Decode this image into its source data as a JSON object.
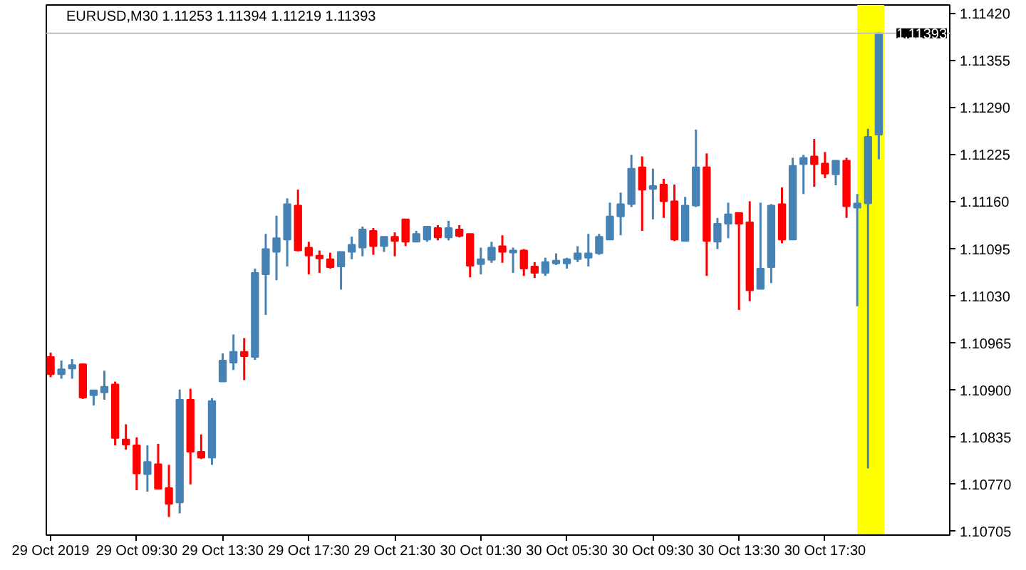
{
  "chart_data": {
    "type": "candlestick",
    "title": "EURUSD,M30 1.11253 1.11394 1.11219 1.11393",
    "x": [
      "2019-10-29T05:30",
      "2019-10-29T06:00",
      "2019-10-29T06:30",
      "2019-10-29T07:00",
      "2019-10-29T07:30",
      "2019-10-29T08:00",
      "2019-10-29T08:30",
      "2019-10-29T09:00",
      "2019-10-29T09:30",
      "2019-10-29T10:00",
      "2019-10-29T10:30",
      "2019-10-29T11:00",
      "2019-10-29T11:30",
      "2019-10-29T12:00",
      "2019-10-29T12:30",
      "2019-10-29T13:00",
      "2019-10-29T13:30",
      "2019-10-29T14:00",
      "2019-10-29T14:30",
      "2019-10-29T15:00",
      "2019-10-29T15:30",
      "2019-10-29T16:00",
      "2019-10-29T16:30",
      "2019-10-29T17:00",
      "2019-10-29T17:30",
      "2019-10-29T18:00",
      "2019-10-29T18:30",
      "2019-10-29T19:00",
      "2019-10-29T19:30",
      "2019-10-29T20:00",
      "2019-10-29T20:30",
      "2019-10-29T21:00",
      "2019-10-29T21:30",
      "2019-10-29T22:00",
      "2019-10-29T22:30",
      "2019-10-29T23:00",
      "2019-10-29T23:30",
      "2019-10-30T00:00",
      "2019-10-30T00:30",
      "2019-10-30T01:00",
      "2019-10-30T01:30",
      "2019-10-30T02:00",
      "2019-10-30T02:30",
      "2019-10-30T03:00",
      "2019-10-30T03:30",
      "2019-10-30T04:00",
      "2019-10-30T04:30",
      "2019-10-30T05:00",
      "2019-10-30T05:30",
      "2019-10-30T06:00",
      "2019-10-30T06:30",
      "2019-10-30T07:00",
      "2019-10-30T07:30",
      "2019-10-30T08:00",
      "2019-10-30T08:30",
      "2019-10-30T09:00",
      "2019-10-30T09:30",
      "2019-10-30T10:00",
      "2019-10-30T10:30",
      "2019-10-30T11:00",
      "2019-10-30T11:30",
      "2019-10-30T12:00",
      "2019-10-30T12:30",
      "2019-10-30T13:00",
      "2019-10-30T13:30",
      "2019-10-30T14:00",
      "2019-10-30T14:30",
      "2019-10-30T15:00",
      "2019-10-30T15:30",
      "2019-10-30T16:00",
      "2019-10-30T16:30",
      "2019-10-30T17:00",
      "2019-10-30T17:30",
      "2019-10-30T18:00",
      "2019-10-30T18:30",
      "2019-10-30T19:00",
      "2019-10-30T19:30",
      "2019-10-30T20:00"
    ],
    "ohlc": [
      [
        1.10946,
        1.10952,
        1.10918,
        1.10922
      ],
      [
        1.10922,
        1.10941,
        1.10916,
        1.10929
      ],
      [
        1.1093,
        1.10943,
        1.10916,
        1.10935
      ],
      [
        1.10936,
        1.10937,
        1.10888,
        1.1089
      ],
      [
        1.10893,
        1.109,
        1.10879,
        1.109
      ],
      [
        1.10897,
        1.10927,
        1.10887,
        1.10905
      ],
      [
        1.10908,
        1.10912,
        1.10824,
        1.10834
      ],
      [
        1.10832,
        1.10853,
        1.10818,
        1.10825
      ],
      [
        1.10824,
        1.10835,
        1.10762,
        1.10785
      ],
      [
        1.10784,
        1.10824,
        1.1076,
        1.10801
      ],
      [
        1.10798,
        1.10826,
        1.10764,
        1.10764
      ],
      [
        1.10765,
        1.10797,
        1.10725,
        1.10743
      ],
      [
        1.10745,
        1.10901,
        1.1073,
        1.10887
      ],
      [
        1.10887,
        1.10902,
        1.1077,
        1.10815
      ],
      [
        1.10815,
        1.10839,
        1.10805,
        1.10807
      ],
      [
        1.10807,
        1.10889,
        1.10797,
        1.10885
      ],
      [
        1.10912,
        1.10951,
        1.10912,
        1.10941
      ],
      [
        1.10938,
        1.10977,
        1.10928,
        1.10953
      ],
      [
        1.10953,
        1.10972,
        1.10914,
        1.10947
      ],
      [
        1.10946,
        1.11068,
        1.10942,
        1.11062
      ],
      [
        1.1106,
        1.11116,
        1.11004,
        1.11095
      ],
      [
        1.11091,
        1.11141,
        1.11052,
        1.1111
      ],
      [
        1.11108,
        1.11165,
        1.11071,
        1.11157
      ],
      [
        1.11155,
        1.11177,
        1.11092,
        1.11093
      ],
      [
        1.11097,
        1.11105,
        1.1106,
        1.11086
      ],
      [
        1.11086,
        1.11093,
        1.11062,
        1.11082
      ],
      [
        1.11081,
        1.1109,
        1.11068,
        1.1107
      ],
      [
        1.11071,
        1.11091,
        1.11039,
        1.11091
      ],
      [
        1.11091,
        1.11112,
        1.11081,
        1.11101
      ],
      [
        1.11097,
        1.11126,
        1.11085,
        1.11122
      ],
      [
        1.1112,
        1.11124,
        1.11087,
        1.11099
      ],
      [
        1.11099,
        1.11112,
        1.11091,
        1.11112
      ],
      [
        1.11112,
        1.11118,
        1.11085,
        1.11106
      ],
      [
        1.11136,
        1.11136,
        1.11099,
        1.11105
      ],
      [
        1.11105,
        1.1112,
        1.11105,
        1.11116
      ],
      [
        1.11108,
        1.11126,
        1.11105,
        1.11126
      ],
      [
        1.11124,
        1.11128,
        1.11107,
        1.11111
      ],
      [
        1.11111,
        1.11134,
        1.11107,
        1.11124
      ],
      [
        1.11122,
        1.11128,
        1.11111,
        1.11113
      ],
      [
        1.11116,
        1.11116,
        1.11056,
        1.11072
      ],
      [
        1.11074,
        1.11097,
        1.1106,
        1.11081
      ],
      [
        1.1108,
        1.11105,
        1.11076,
        1.11097
      ],
      [
        1.11099,
        1.11114,
        1.11076,
        1.11091
      ],
      [
        1.1109,
        1.11097,
        1.11062,
        1.11093
      ],
      [
        1.11093,
        1.11095,
        1.11058,
        1.11068
      ],
      [
        1.11071,
        1.11077,
        1.11055,
        1.11062
      ],
      [
        1.11062,
        1.11083,
        1.11058,
        1.11077
      ],
      [
        1.11075,
        1.11089,
        1.11073,
        1.11079
      ],
      [
        1.11075,
        1.11083,
        1.11068,
        1.11081
      ],
      [
        1.11081,
        1.11099,
        1.11077,
        1.11089
      ],
      [
        1.11083,
        1.11116,
        1.11071,
        1.11089
      ],
      [
        1.11089,
        1.11116,
        1.11087,
        1.11112
      ],
      [
        1.11108,
        1.11159,
        1.11108,
        1.1114
      ],
      [
        1.1114,
        1.11173,
        1.11114,
        1.11157
      ],
      [
        1.11157,
        1.11225,
        1.11153,
        1.11206
      ],
      [
        1.11208,
        1.11223,
        1.1112,
        1.11177
      ],
      [
        1.11178,
        1.11206,
        1.11136,
        1.11182
      ],
      [
        1.11184,
        1.11192,
        1.11138,
        1.11161
      ],
      [
        1.11161,
        1.11184,
        1.11106,
        1.11108
      ],
      [
        1.11106,
        1.11167,
        1.11106,
        1.11155
      ],
      [
        1.11155,
        1.1126,
        1.11153,
        1.11208
      ],
      [
        1.11208,
        1.11227,
        1.11058,
        1.11106
      ],
      [
        1.11105,
        1.11138,
        1.11095,
        1.1113
      ],
      [
        1.1113,
        1.11159,
        1.1111,
        1.11143
      ],
      [
        1.11145,
        1.11145,
        1.11011,
        1.1113
      ],
      [
        1.11132,
        1.11161,
        1.11023,
        1.11038
      ],
      [
        1.1104,
        1.11159,
        1.1104,
        1.11068
      ],
      [
        1.1107,
        1.11157,
        1.11048,
        1.11155
      ],
      [
        1.11157,
        1.1118,
        1.11103,
        1.11108
      ],
      [
        1.11108,
        1.11221,
        1.11108,
        1.1121
      ],
      [
        1.11212,
        1.11225,
        1.11171,
        1.11221
      ],
      [
        1.11223,
        1.11247,
        1.11181,
        1.11212
      ],
      [
        1.11213,
        1.11229,
        1.11193,
        1.11199
      ],
      [
        1.11198,
        1.11217,
        1.11183,
        1.11217
      ],
      [
        1.11217,
        1.11221,
        1.11138,
        1.11154
      ],
      [
        1.11152,
        1.11171,
        1.11016,
        1.11158
      ],
      [
        1.11158,
        1.11261,
        1.10792,
        1.1125
      ],
      [
        1.11253,
        1.11394,
        1.11219,
        1.11393
      ]
    ],
    "colors": [
      "#ff0000",
      "#4682b4",
      "#4682b4",
      "#ff0000",
      "#4682b4",
      "#4682b4",
      "#ff0000",
      "#ff0000",
      "#ff0000",
      "#4682b4",
      "#ff0000",
      "#ff0000",
      "#4682b4",
      "#ff0000",
      "#ff0000",
      "#4682b4",
      "#4682b4",
      "#4682b4",
      "#ff0000",
      "#4682b4",
      "#4682b4",
      "#4682b4",
      "#4682b4",
      "#ff0000",
      "#ff0000",
      "#ff0000",
      "#ff0000",
      "#4682b4",
      "#4682b4",
      "#4682b4",
      "#ff0000",
      "#4682b4",
      "#ff0000",
      "#ff0000",
      "#4682b4",
      "#4682b4",
      "#ff0000",
      "#4682b4",
      "#ff0000",
      "#ff0000",
      "#4682b4",
      "#4682b4",
      "#ff0000",
      "#4682b4",
      "#ff0000",
      "#ff0000",
      "#4682b4",
      "#4682b4",
      "#4682b4",
      "#4682b4",
      "#4682b4",
      "#4682b4",
      "#4682b4",
      "#4682b4",
      "#4682b4",
      "#ff0000",
      "#4682b4",
      "#ff0000",
      "#ff0000",
      "#4682b4",
      "#4682b4",
      "#ff0000",
      "#4682b4",
      "#4682b4",
      "#ff0000",
      "#ff0000",
      "#4682b4",
      "#4682b4",
      "#ff0000",
      "#4682b4",
      "#4682b4",
      "#ff0000",
      "#ff0000",
      "#4682b4",
      "#ff0000",
      "#4682b4",
      "#4682b4",
      "#4682b4"
    ],
    "xlim": [
      "2019-10-29T05:18",
      "2019-10-30T23:18"
    ],
    "xticks": [
      {
        "value": "2019-10-29T05:30",
        "label": "29 Oct 2019"
      },
      {
        "value": "2019-10-29T09:30",
        "label": "29 Oct 09:30"
      },
      {
        "value": "2019-10-29T13:30",
        "label": "29 Oct 13:30"
      },
      {
        "value": "2019-10-29T17:30",
        "label": "29 Oct 17:30"
      },
      {
        "value": "2019-10-29T21:30",
        "label": "29 Oct 21:30"
      },
      {
        "value": "2019-10-30T01:30",
        "label": "30 Oct 01:30"
      },
      {
        "value": "2019-10-30T05:30",
        "label": "30 Oct 05:30"
      },
      {
        "value": "2019-10-30T09:30",
        "label": "30 Oct 09:30"
      },
      {
        "value": "2019-10-30T13:30",
        "label": "30 Oct 13:30"
      },
      {
        "value": "2019-10-30T17:30",
        "label": "30 Oct 17:30"
      }
    ],
    "ylim": [
      1.107,
      1.11432
    ],
    "yticks": [
      {
        "value": 1.1142,
        "label": "1.11420"
      },
      {
        "value": 1.11355,
        "label": "1.11355"
      },
      {
        "value": 1.1129,
        "label": "1.11290"
      },
      {
        "value": 1.11225,
        "label": "1.11225"
      },
      {
        "value": 1.1116,
        "label": "1.11160"
      },
      {
        "value": 1.11095,
        "label": "1.11095"
      },
      {
        "value": 1.1103,
        "label": "1.11030"
      },
      {
        "value": 1.10965,
        "label": "1.10965"
      },
      {
        "value": 1.109,
        "label": "1.10900"
      },
      {
        "value": 1.10835,
        "label": "1.10835"
      },
      {
        "value": 1.1077,
        "label": "1.10770"
      },
      {
        "value": 1.10705,
        "label": "1.10705"
      }
    ],
    "ref_lines": [
      {
        "axis": "y",
        "value": 1.11393,
        "label": "1.11393",
        "color": "#c0c0c0"
      }
    ],
    "bands": [
      {
        "axis": "x",
        "from": "2019-10-30T19:00",
        "to": "2019-10-30T20:15",
        "color": "#ffff00"
      }
    ]
  }
}
